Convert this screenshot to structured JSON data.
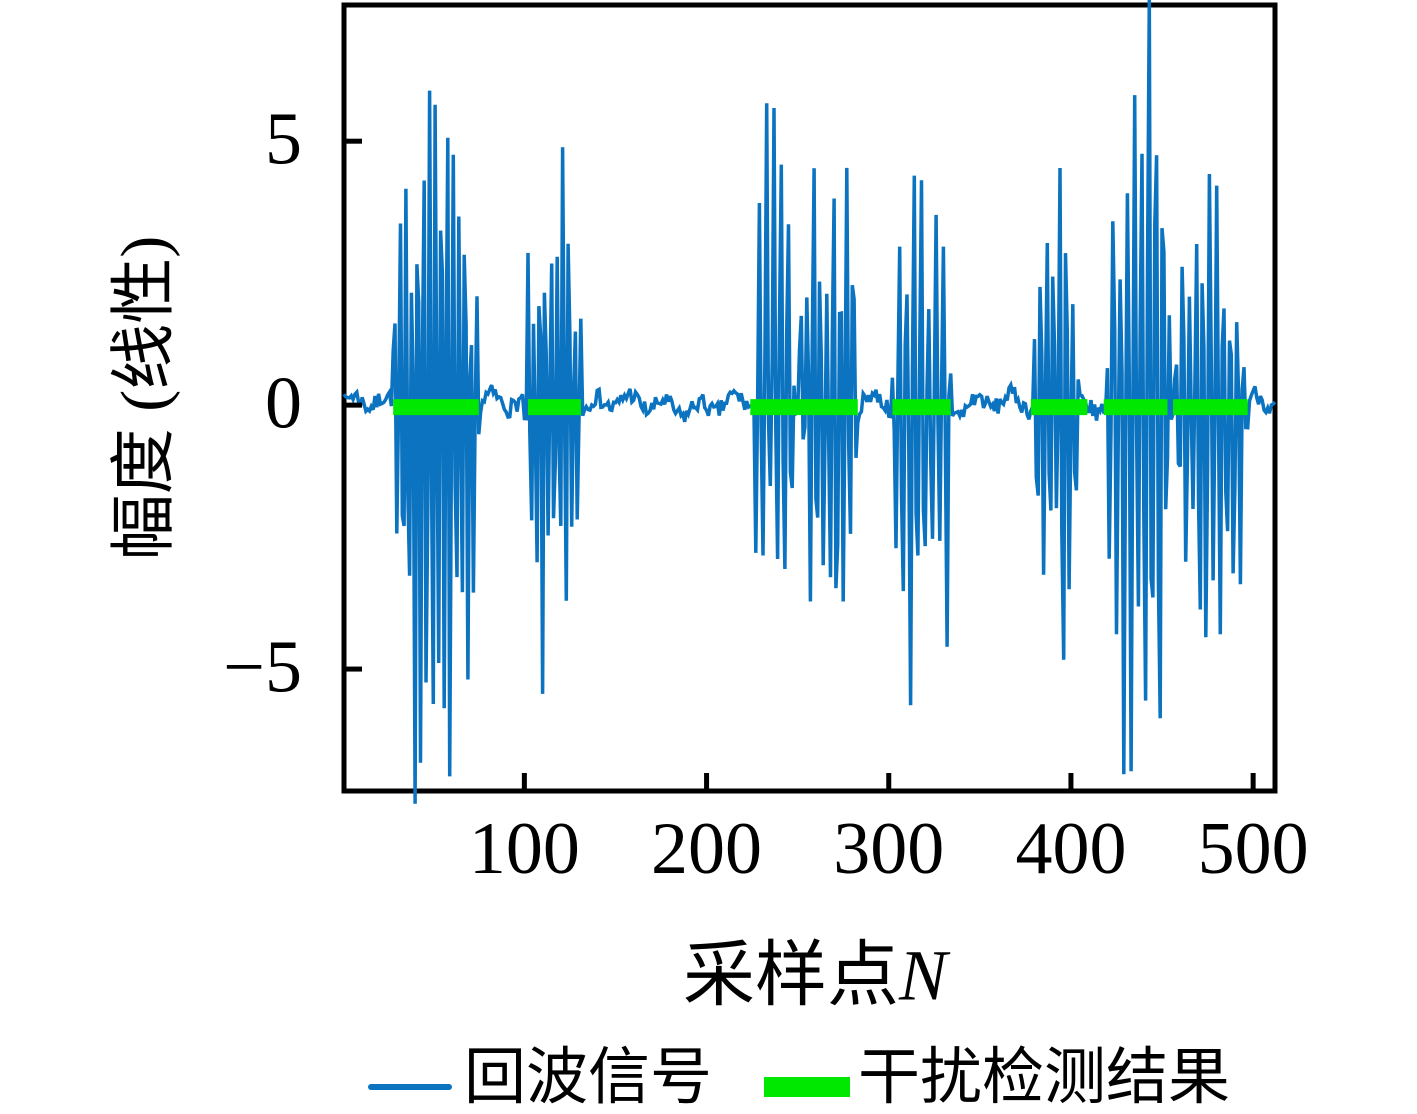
{
  "page": {
    "background": "#ffffff"
  },
  "plot": {
    "spine_color": "#000000",
    "x_axis": {
      "label_prefix": "采样点",
      "label_var": "N",
      "ticks": [
        100,
        200,
        300,
        400,
        500
      ],
      "tick_labels": [
        "100",
        "200",
        "300",
        "400",
        "500"
      ]
    },
    "y_axis": {
      "label": "幅度 (线性)",
      "ticks": [
        5,
        0,
        -5
      ],
      "tick_labels": [
        "5",
        "0",
        "−5"
      ]
    }
  },
  "legend": {
    "items": [
      {
        "label": "回波信号",
        "color": "#0b73c0",
        "sample": "thin-line"
      },
      {
        "label": "干扰检测结果",
        "color": "#00e800",
        "sample": "thick-line"
      }
    ]
  },
  "chart_data": {
    "type": "line",
    "title": "",
    "xlabel": "采样点N",
    "ylabel": "幅度 (线性)",
    "xlim": [
      1,
      512
    ],
    "ylim": [
      -7.31,
      7.58
    ],
    "xticks": [
      100,
      200,
      300,
      400,
      500
    ],
    "yticks": [
      5,
      0,
      -5
    ],
    "grid": false,
    "legend_position": "below",
    "series": [
      {
        "name": "回波信号",
        "color": "#0b73c0",
        "kind": "noisy-burst-signal",
        "n": 512,
        "seed": 7,
        "line_width": 3.5,
        "noise": {
          "slow1": 0.13,
          "slow2": 0.09,
          "random": 0.17
        },
        "bursts": [
          {
            "start": 27,
            "end": 76,
            "pos": 6.0,
            "neg": -7.45
          },
          {
            "start": 99,
            "end": 132,
            "pos": 4.7,
            "neg": -5.3
          },
          {
            "start": 225,
            "end": 249,
            "pos": 5.6,
            "neg": -3.1
          },
          {
            "start": 250,
            "end": 284,
            "pos": 4.6,
            "neg": -3.9
          },
          {
            "start": 301,
            "end": 335,
            "pos": 4.5,
            "neg": -5.9
          },
          {
            "start": 379,
            "end": 405,
            "pos": 4.6,
            "neg": -4.7
          },
          {
            "start": 419,
            "end": 455,
            "pos": 7.7,
            "neg": -7.0
          },
          {
            "start": 456,
            "end": 498,
            "pos": 4.5,
            "neg": -4.6
          }
        ]
      },
      {
        "name": "干扰检测结果",
        "color": "#00e800",
        "kind": "segments-at-zero",
        "y": 0,
        "line_width": 16,
        "segments": [
          [
            28,
            75
          ],
          [
            102,
            131
          ],
          [
            224,
            283
          ],
          [
            302,
            334
          ],
          [
            378,
            409
          ],
          [
            418,
            453
          ],
          [
            456,
            497
          ]
        ]
      }
    ]
  }
}
